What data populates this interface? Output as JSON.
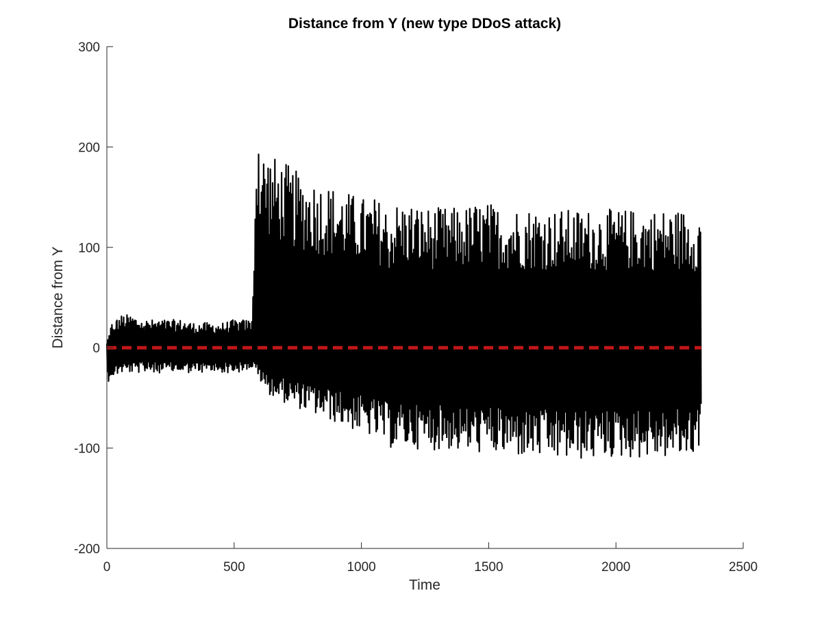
{
  "chart_data": {
    "type": "line",
    "title": "Distance from Y (new type DDoS attack)",
    "xlabel": "Time",
    "ylabel": "Distance from Y",
    "xlim": [
      0,
      2500
    ],
    "ylim": [
      -200,
      300
    ],
    "xticks": [
      0,
      500,
      1000,
      1500,
      2000,
      2500
    ],
    "yticks": [
      -200,
      -100,
      0,
      100,
      200,
      300
    ],
    "grid": false,
    "legend": "none",
    "series": [
      {
        "style": "solid",
        "color": "#000000",
        "x": [
          0,
          20,
          60,
          100,
          140,
          180,
          220,
          260,
          300,
          340,
          380,
          420,
          460,
          500,
          540,
          570,
          585,
          600,
          630,
          660,
          700,
          750,
          800,
          850,
          900,
          950,
          1000,
          1050,
          1090,
          1110,
          1130,
          1160,
          1200,
          1250,
          1300,
          1350,
          1400,
          1450,
          1500,
          1550,
          1600,
          1650,
          1700,
          1750,
          1800,
          1850,
          1900,
          1950,
          2000,
          2050,
          2100,
          2150,
          2200,
          2250,
          2300,
          2335
        ],
        "y_max": [
          5,
          25,
          33,
          33,
          28,
          28,
          28,
          28,
          28,
          25,
          25,
          25,
          25,
          28,
          28,
          28,
          205,
          200,
          200,
          190,
          185,
          175,
          170,
          165,
          160,
          155,
          150,
          150,
          145,
          135,
          145,
          145,
          145,
          140,
          140,
          140,
          140,
          145,
          145,
          140,
          140,
          140,
          140,
          138,
          138,
          138,
          138,
          138,
          138,
          138,
          138,
          138,
          138,
          138,
          138,
          135
        ],
        "y_min": [
          -35,
          -30,
          -25,
          -25,
          -25,
          -25,
          -25,
          -25,
          -25,
          -25,
          -25,
          -25,
          -25,
          -25,
          -25,
          -20,
          -25,
          -35,
          -45,
          -50,
          -55,
          -60,
          -65,
          -70,
          -75,
          -80,
          -85,
          -90,
          -95,
          -100,
          -100,
          -100,
          -100,
          -102,
          -102,
          -102,
          -105,
          -105,
          -105,
          -108,
          -108,
          -110,
          -110,
          -112,
          -112,
          -112,
          -112,
          -110,
          -110,
          -110,
          -110,
          -110,
          -110,
          -110,
          -108,
          -95
        ]
      },
      {
        "style": "dashed",
        "color": "#e31a1c",
        "x": [
          0,
          2335
        ],
        "y": [
          0,
          0
        ]
      }
    ]
  }
}
